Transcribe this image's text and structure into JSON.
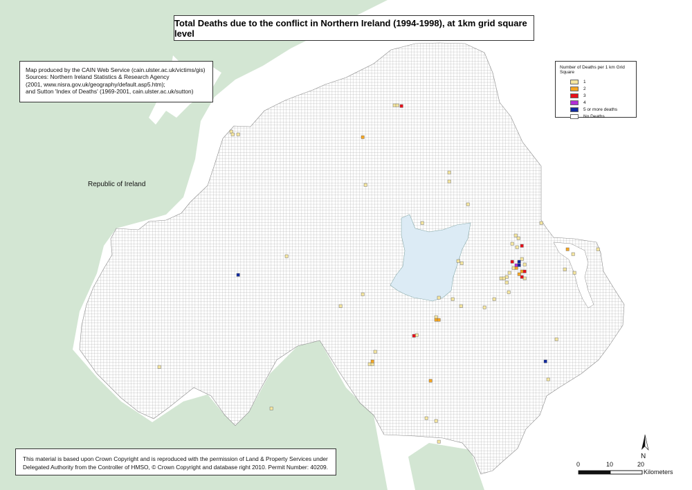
{
  "title": "Total Deaths due to the conflict in Northern Ireland (1994-1998), at 1km grid square level",
  "source_lines": [
    "Map produced by the CAIN Web Service (cain.ulster.ac.uk/victims/gis)",
    "Sources: Northern Ireland Statistics & Research Agency",
    "(2001, www.nisra.gov.uk/geography/default.asp5.htm);",
    "and Sutton 'Index of Deaths' (1969-2001, cain.ulster.ac.uk/sutton)"
  ],
  "copyright_lines": [
    "This material is based upon Crown Copyright and is reproduced with the permission of Land & Property Services under",
    "Delegated Authority from the Controller of HMSO, © Crown Copyright and database right 2010. Permit Number: 40209."
  ],
  "region_label": "Republic of Ireland",
  "legend": {
    "title": "Number of Deaths per 1 km Grid Square",
    "items": [
      {
        "label": "1",
        "color": "#f5e6a0"
      },
      {
        "label": "2",
        "color": "#f5a623"
      },
      {
        "label": "3",
        "color": "#e8101a"
      },
      {
        "label": "4",
        "color": "#b22fd6"
      },
      {
        "label": "5 or more deaths",
        "color": "#102aa0"
      },
      {
        "label": "No Deaths",
        "color": "#ffffff"
      }
    ]
  },
  "scale": {
    "ticks": [
      "0",
      "10",
      "20"
    ],
    "unit": "Kilometers"
  },
  "north_label": "N",
  "colors": {
    "land_roi": "#d3e6d3",
    "lough": "#dcebf5",
    "grid_line": "#9a9a9a"
  }
}
